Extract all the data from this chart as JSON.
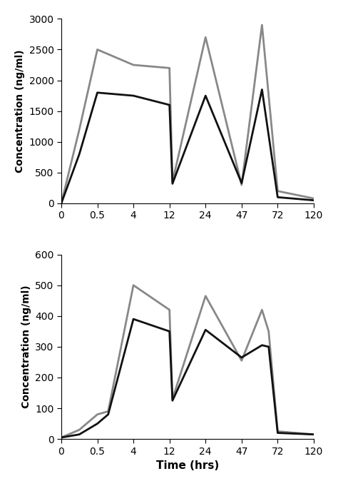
{
  "top_chart": {
    "ylabel": "Concentration (ng/ml)",
    "ylim": [
      0,
      3000
    ],
    "yticks": [
      0,
      500,
      1000,
      1500,
      2000,
      2500,
      3000
    ],
    "xtick_positions": [
      0,
      1,
      2,
      3,
      4,
      5,
      6,
      7
    ],
    "xticklabels": [
      "0",
      "0.5",
      "4",
      "12",
      "24",
      "47",
      "72",
      "120"
    ],
    "time_to_pos": {
      "0": 0,
      "0.25": 0.5,
      "0.5": 1,
      "4": 2,
      "12": 3,
      "13": 3.083,
      "24": 4,
      "47": 5,
      "60": 5.565,
      "72": 6,
      "120": 7
    },
    "gray_line": {
      "x_pos": [
        0,
        0.5,
        1,
        2,
        3,
        3.083,
        4,
        5,
        5.565,
        6,
        7
      ],
      "y": [
        0,
        1200,
        2500,
        2250,
        2200,
        350,
        2700,
        300,
        2900,
        200,
        80
      ]
    },
    "black_line": {
      "x_pos": [
        0,
        0.5,
        1,
        2,
        3,
        3.083,
        4,
        5,
        5.565,
        6,
        7
      ],
      "y": [
        0,
        800,
        1800,
        1750,
        1600,
        320,
        1750,
        330,
        1850,
        100,
        50
      ]
    }
  },
  "bottom_chart": {
    "ylabel": "Concentration (ng/ml)",
    "xlabel": "Time (hrs)",
    "ylim": [
      0,
      600
    ],
    "yticks": [
      0,
      100,
      200,
      300,
      400,
      500,
      600
    ],
    "xtick_positions": [
      0,
      1,
      2,
      3,
      4,
      5,
      6,
      7
    ],
    "xticklabels": [
      "0",
      "0.5",
      "4",
      "12",
      "24",
      "47",
      "72",
      "120"
    ],
    "gray_line": {
      "x_pos": [
        0,
        0.5,
        1,
        1.3,
        2,
        3,
        3.083,
        4,
        5,
        5.565,
        5.75,
        6,
        7
      ],
      "y": [
        5,
        30,
        80,
        90,
        500,
        420,
        130,
        465,
        255,
        420,
        350,
        25,
        15
      ]
    },
    "black_line": {
      "x_pos": [
        0,
        0.5,
        1,
        1.3,
        2,
        3,
        3.083,
        4,
        5,
        5.565,
        5.75,
        6,
        7
      ],
      "y": [
        5,
        15,
        50,
        80,
        390,
        350,
        125,
        355,
        265,
        305,
        300,
        20,
        15
      ]
    }
  },
  "gray_color": "#888888",
  "black_color": "#111111",
  "line_width": 2.0,
  "background_color": "#ffffff"
}
